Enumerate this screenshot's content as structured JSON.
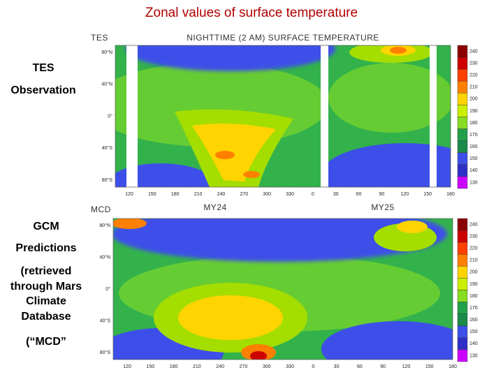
{
  "title": "Zonal values of surface temperature",
  "side_labels": {
    "tes": [
      "TES",
      "Observation"
    ],
    "gcm": [
      "GCM",
      "Predictions",
      "(retrieved",
      "through Mars",
      "Climate",
      "Database",
      "(“MCD”"
    ]
  },
  "plots": [
    {
      "label": "TES",
      "title": "NIGHTTIME (2 AM) SURFACE TEMPERATURE",
      "y_ticks": [
        "80°N",
        "40°N",
        "0°",
        "40°S",
        "80°S"
      ],
      "x_ticks": [
        "120",
        "150",
        "180",
        "210",
        "240",
        "270",
        "300",
        "330",
        "0",
        "30",
        "60",
        "90",
        "120",
        "150",
        "180"
      ],
      "colorbar": [
        "240",
        "230",
        "220",
        "210",
        "200",
        "190",
        "180",
        "170",
        "160",
        "150",
        "140",
        "130"
      ]
    },
    {
      "label": "MCD",
      "year_labels": [
        "MY24",
        "MY25"
      ],
      "y_ticks": [
        "80°N",
        "40°N",
        "0°",
        "40°S",
        "80°S"
      ],
      "x_ticks": [
        "120",
        "150",
        "180",
        "210",
        "240",
        "270",
        "300",
        "330",
        "0",
        "30",
        "60",
        "90",
        "120",
        "150",
        "180"
      ],
      "colorbar": [
        "240",
        "230",
        "220",
        "210",
        "200",
        "190",
        "180",
        "170",
        "160",
        "150",
        "140",
        "130"
      ]
    }
  ]
}
